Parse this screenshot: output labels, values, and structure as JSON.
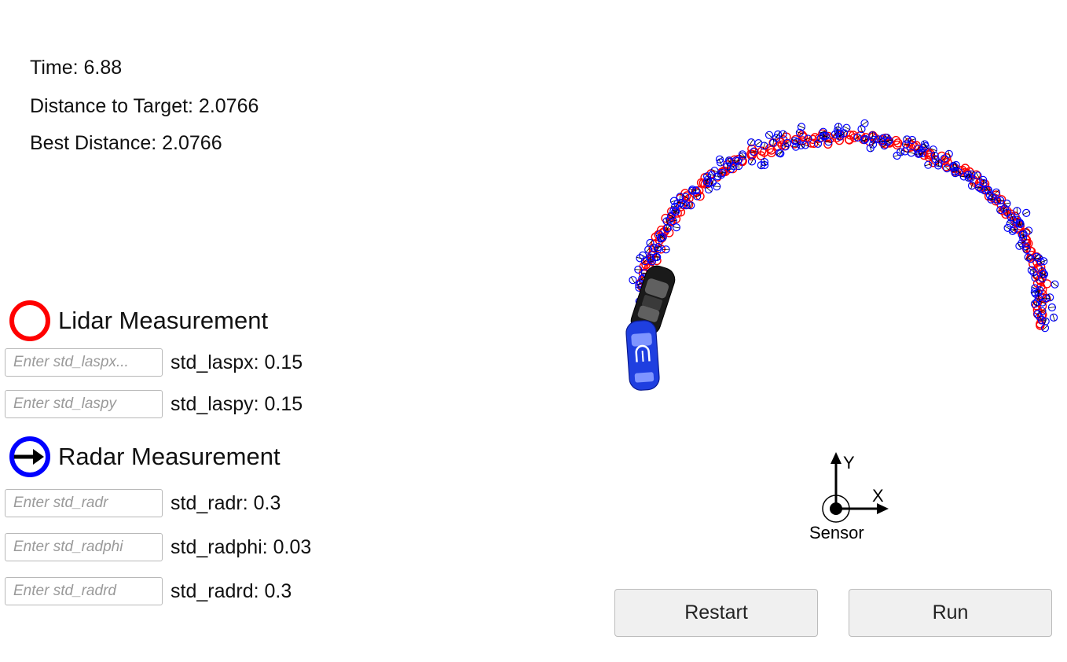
{
  "stats": {
    "time": "Time: 6.88",
    "distance": "Distance to Target: 2.0766",
    "best": "Best Distance: 2.0766"
  },
  "legend": {
    "lidar": "Lidar Measurement",
    "radar": "Radar Measurement",
    "lidar_color": "#ff0000",
    "radar_color": "#0000ff"
  },
  "params": [
    {
      "placeholder": "Enter std_laspx...",
      "value": "",
      "label": "std_laspx: 0.15"
    },
    {
      "placeholder": "Enter std_laspy",
      "value": "",
      "label": "std_laspy: 0.15"
    },
    {
      "placeholder": "Enter std_radr",
      "value": "",
      "label": "std_radr: 0.3"
    },
    {
      "placeholder": "Enter std_radphi",
      "value": "",
      "label": "std_radphi: 0.03"
    },
    {
      "placeholder": "Enter std_radrd",
      "value": "",
      "label": "std_radrd: 0.3"
    }
  ],
  "axes": {
    "x": "X",
    "y": "Y",
    "sensor": "Sensor"
  },
  "buttons": {
    "restart": "Restart",
    "run": "Run"
  }
}
